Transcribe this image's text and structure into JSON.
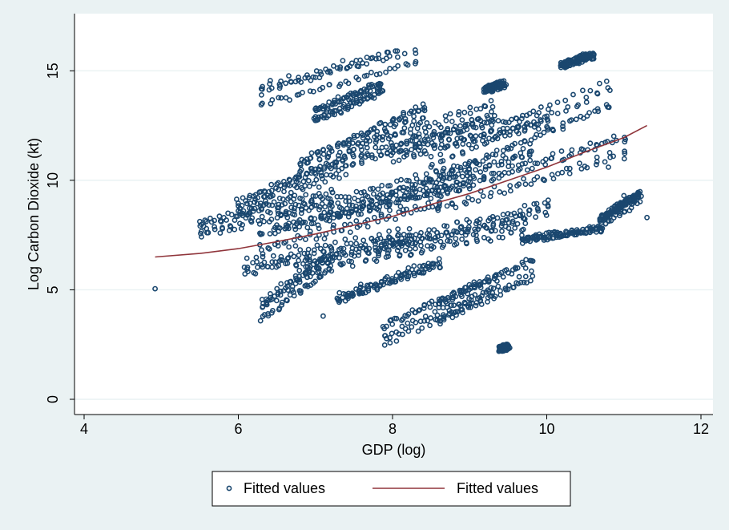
{
  "chart_data": {
    "type": "scatter",
    "xlabel": "GDP (log)",
    "ylabel": "Log Carbon Dioxide (kt)",
    "xlim": [
      4,
      12
    ],
    "ylim": [
      0,
      16
    ],
    "xticks": [
      4,
      6,
      8,
      10,
      12
    ],
    "yticks": [
      0,
      5,
      10,
      15
    ],
    "grid": "horizontal",
    "legend_position": "bottom",
    "colors": {
      "points": "#1a476f",
      "line": "#90353b",
      "background": "#eaf2f3",
      "plot_background": "#ffffff",
      "grid": "#eaf2f3"
    },
    "series": [
      {
        "name": "Fitted values",
        "type": "scatter",
        "point_count": 2500,
        "sample_points": [
          [
            4.92,
            5.05
          ],
          [
            5.55,
            7.9
          ],
          [
            6.0,
            8.6
          ],
          [
            6.3,
            13.9
          ],
          [
            7.0,
            14.7
          ],
          [
            8.3,
            15.8
          ],
          [
            7.0,
            12.9
          ],
          [
            7.8,
            14.2
          ],
          [
            9.4,
            14.4
          ],
          [
            10.2,
            15.3
          ],
          [
            10.6,
            15.8
          ],
          [
            7.9,
            2.9
          ],
          [
            9.45,
            2.3
          ],
          [
            7.1,
            3.8
          ],
          [
            11.3,
            8.3
          ],
          [
            10.8,
            10.6
          ],
          [
            11.0,
            9.3
          ]
        ],
        "bands": [
          {
            "x": [
              6.3,
              8.3
            ],
            "y": [
              13.9,
              15.8
            ]
          },
          {
            "x": [
              7.0,
              7.85
            ],
            "y": [
              12.9,
              14.2
            ]
          },
          {
            "x": [
              9.2,
              9.45
            ],
            "y": [
              14.1,
              14.4
            ]
          },
          {
            "x": [
              10.2,
              10.6
            ],
            "y": [
              15.3,
              15.75
            ]
          },
          {
            "x": [
              6.0,
              7.4
            ],
            "y": [
              8.6,
              10.6
            ]
          },
          {
            "x": [
              6.8,
              8.4
            ],
            "y": [
              10.3,
              12.8
            ]
          },
          {
            "x": [
              7.5,
              9.3
            ],
            "y": [
              11.2,
              13.2
            ]
          },
          {
            "x": [
              8.0,
              10.0
            ],
            "y": [
              11.3,
              12.8
            ]
          },
          {
            "x": [
              8.5,
              10.8
            ],
            "y": [
              10.3,
              13.7
            ]
          },
          {
            "x": [
              5.5,
              7.2
            ],
            "y": [
              7.8,
              9.2
            ]
          },
          {
            "x": [
              6.3,
              8.6
            ],
            "y": [
              7.2,
              9.3
            ]
          },
          {
            "x": [
              6.5,
              9.0
            ],
            "y": [
              8.1,
              10.2
            ]
          },
          {
            "x": [
              7.2,
              9.8
            ],
            "y": [
              8.6,
              11.2
            ]
          },
          {
            "x": [
              8.6,
              11.0
            ],
            "y": [
              9.0,
              11.5
            ]
          },
          {
            "x": [
              6.1,
              8.2
            ],
            "y": [
              6.0,
              7.4
            ]
          },
          {
            "x": [
              6.9,
              9.7
            ],
            "y": [
              6.2,
              8.0
            ]
          },
          {
            "x": [
              7.8,
              10.0
            ],
            "y": [
              6.8,
              8.6
            ]
          },
          {
            "x": [
              6.3,
              7.2
            ],
            "y": [
              4.0,
              6.2
            ]
          },
          {
            "x": [
              7.3,
              8.6
            ],
            "y": [
              4.6,
              6.2
            ]
          },
          {
            "x": [
              7.9,
              9.3
            ],
            "y": [
              3.0,
              5.2
            ]
          },
          {
            "x": [
              8.6,
              9.8
            ],
            "y": [
              4.0,
              6.0
            ]
          },
          {
            "x": [
              9.7,
              10.7
            ],
            "y": [
              7.3,
              7.8
            ]
          },
          {
            "x": [
              10.7,
              11.2
            ],
            "y": [
              8.2,
              9.3
            ]
          },
          {
            "x": [
              9.4,
              9.5
            ],
            "y": [
              2.3,
              2.4
            ]
          }
        ]
      },
      {
        "name": "Fitted values",
        "type": "line",
        "x": [
          4.92,
          5.5,
          6.0,
          6.5,
          7.0,
          7.5,
          8.0,
          8.5,
          9.0,
          9.5,
          10.0,
          10.5,
          11.0,
          11.3
        ],
        "y": [
          6.5,
          6.66,
          6.88,
          7.2,
          7.55,
          7.95,
          8.35,
          8.9,
          9.4,
          10.0,
          10.6,
          11.3,
          11.95,
          12.5
        ]
      }
    ],
    "legend": [
      "Fitted values",
      "Fitted values"
    ]
  }
}
